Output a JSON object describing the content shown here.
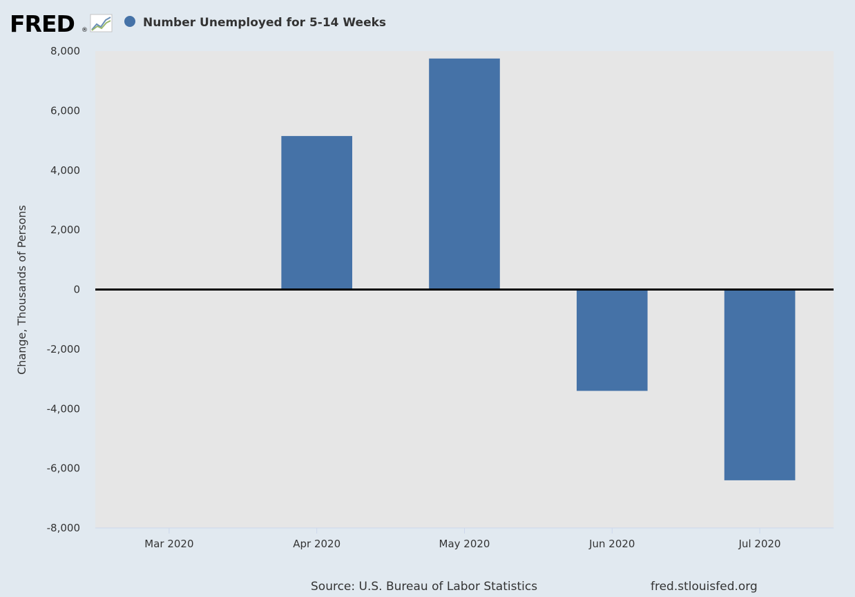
{
  "header": {
    "logo_text": "FRED",
    "logo_registered": "®",
    "legend_label": "Number Unemployed for 5-14 Weeks"
  },
  "footer": {
    "source": "Source: U.S. Bureau of Labor Statistics",
    "site": "fred.stlouisfed.org"
  },
  "colors": {
    "bar": "#4572a7",
    "plot_background": "#e6e6e6",
    "page_background": "#e1e9f0",
    "zero_line": "#000000"
  },
  "icons": [
    "fred-chart-logo-icon",
    "legend-marker-icon"
  ],
  "chart_data": {
    "type": "bar",
    "title": "",
    "xlabel": "",
    "ylabel": "Change, Thousands of Persons",
    "categories": [
      "Mar 2020",
      "Apr 2020",
      "May 2020",
      "Jun 2020",
      "Jul 2020"
    ],
    "series": [
      {
        "name": "Number Unemployed for 5-14 Weeks",
        "values": [
          null,
          5150,
          7750,
          -3400,
          -6400
        ]
      }
    ],
    "ylim": [
      -8000,
      8000
    ],
    "yticks": [
      8000,
      6000,
      4000,
      2000,
      0,
      -2000,
      -4000,
      -6000,
      -8000
    ],
    "ytick_labels": [
      "8,000",
      "6,000",
      "4,000",
      "2,000",
      "0",
      "-2,000",
      "-4,000",
      "-6,000",
      "-8,000"
    ],
    "grid": false,
    "legend_position": "top-left"
  }
}
